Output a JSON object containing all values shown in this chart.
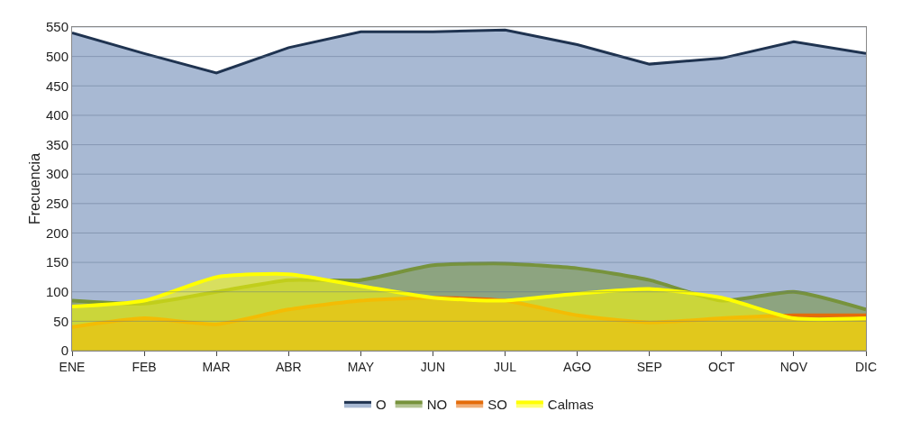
{
  "chart_data": {
    "type": "area",
    "ylabel": "Frecuencia",
    "categories": [
      "ENE",
      "FEB",
      "MAR",
      "ABR",
      "MAY",
      "JUN",
      "JUL",
      "AGO",
      "SEP",
      "OCT",
      "NOV",
      "DIC"
    ],
    "series": [
      {
        "name": "O",
        "color": "#1f3350",
        "values": [
          540,
          505,
          472,
          515,
          542,
          542,
          545,
          520,
          487,
          497,
          525,
          505
        ]
      },
      {
        "name": "NO",
        "color": "#77933c",
        "values": [
          85,
          80,
          100,
          120,
          120,
          145,
          148,
          140,
          120,
          85,
          100,
          70
        ]
      },
      {
        "name": "SO",
        "color": "#e46c0a",
        "values": [
          40,
          55,
          45,
          70,
          85,
          90,
          85,
          60,
          48,
          55,
          60,
          60
        ]
      },
      {
        "name": "Calmas",
        "color": "#ffff00",
        "values": [
          75,
          85,
          125,
          130,
          110,
          90,
          85,
          97,
          105,
          90,
          55,
          55
        ]
      }
    ],
    "ylim": [
      0,
      550
    ],
    "yticks": [
      0,
      50,
      100,
      150,
      200,
      250,
      300,
      350,
      400,
      450,
      500,
      550
    ],
    "grid": "y",
    "legend": "bottom"
  }
}
